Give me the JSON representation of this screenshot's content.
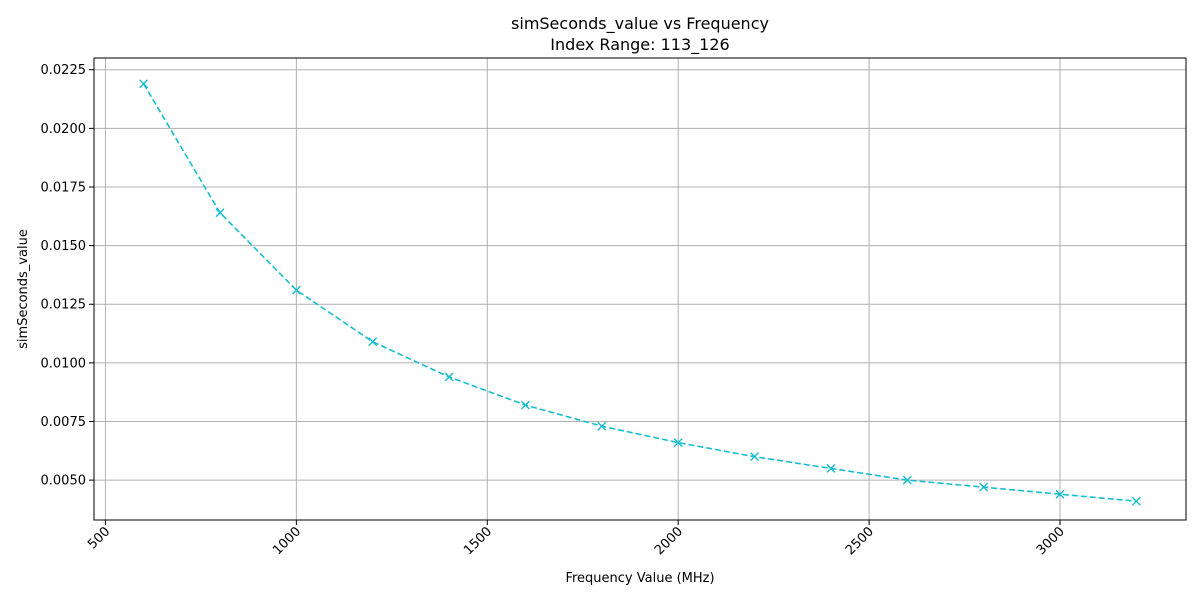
{
  "chart_data": {
    "type": "line",
    "title": "simSeconds_value vs Frequency",
    "subtitle": "Index Range: 113_126",
    "xlabel": "Frequency Value (MHz)",
    "ylabel": "simSeconds_value",
    "xlim": [
      470,
      3330
    ],
    "ylim": [
      0.0033,
      0.023
    ],
    "xticks": [
      500,
      1000,
      1500,
      2000,
      2500,
      3000
    ],
    "xtick_labels": [
      "500",
      "1000",
      "1500",
      "2000",
      "2500",
      "3000"
    ],
    "yticks": [
      0.005,
      0.0075,
      0.01,
      0.0125,
      0.015,
      0.0175,
      0.02,
      0.0225
    ],
    "ytick_labels": [
      "0.0050",
      "0.0075",
      "0.0100",
      "0.0125",
      "0.0150",
      "0.0175",
      "0.0200",
      "0.0225"
    ],
    "grid": true,
    "xtick_rotation": "45°",
    "series": [
      {
        "color": "#17becf",
        "line_style": "dashed",
        "marker": "x",
        "x": [
          600,
          800,
          1000,
          1200,
          1400,
          1600,
          1800,
          2000,
          2200,
          2400,
          2600,
          2800,
          3000,
          3200
        ],
        "y": [
          0.0219,
          0.0164,
          0.0131,
          0.0109,
          0.0094,
          0.0082,
          0.0073,
          0.0066,
          0.006,
          0.0055,
          0.005,
          0.0047,
          0.0044,
          0.0041
        ]
      }
    ]
  }
}
